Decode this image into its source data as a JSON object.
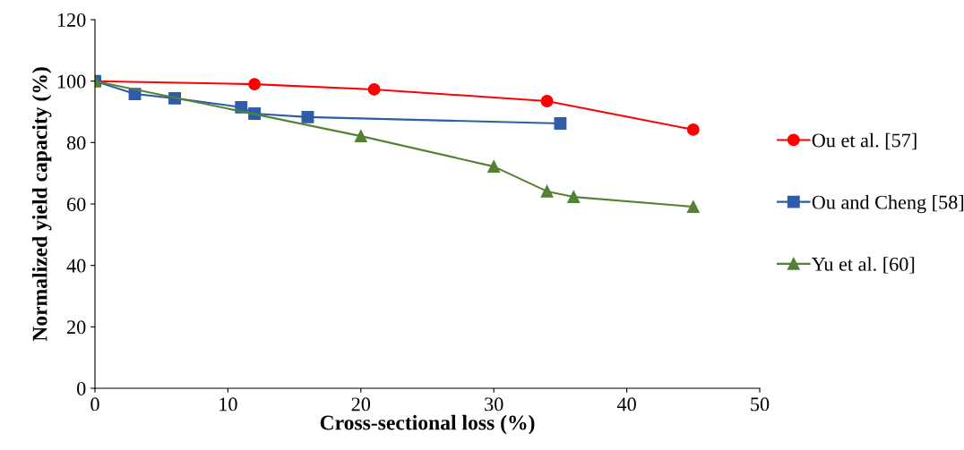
{
  "chart_data": {
    "type": "line",
    "xlabel": "Cross-sectional loss (%)",
    "ylabel": "Normalized yield capacity (%)",
    "xlim": [
      0,
      50
    ],
    "xticks": [
      0,
      10,
      20,
      30,
      40,
      50
    ],
    "ylim": [
      0,
      120
    ],
    "yticks": [
      0,
      20,
      40,
      60,
      80,
      100,
      120
    ],
    "grid": false,
    "legend": "right",
    "series": [
      {
        "name": "Ou et al. [57]",
        "color": "#ff0000",
        "marker": "circle",
        "x": [
          0,
          12,
          21,
          34,
          45
        ],
        "values": [
          100,
          99,
          97.3,
          93.5,
          84.2
        ]
      },
      {
        "name": "Ou and Cheng [58]",
        "color": "#2e5ca8",
        "marker": "square",
        "x": [
          0,
          3,
          6,
          11,
          12,
          16,
          35
        ],
        "values": [
          100,
          95.8,
          94.4,
          91.5,
          89.4,
          88.3,
          86.2
        ]
      },
      {
        "name": "Yu et al. [60]",
        "color": "#548235",
        "marker": "triangle",
        "x": [
          0,
          20,
          30,
          34,
          36,
          45
        ],
        "values": [
          100,
          82.1,
          72.2,
          64.1,
          62.3,
          59.1
        ]
      }
    ]
  }
}
